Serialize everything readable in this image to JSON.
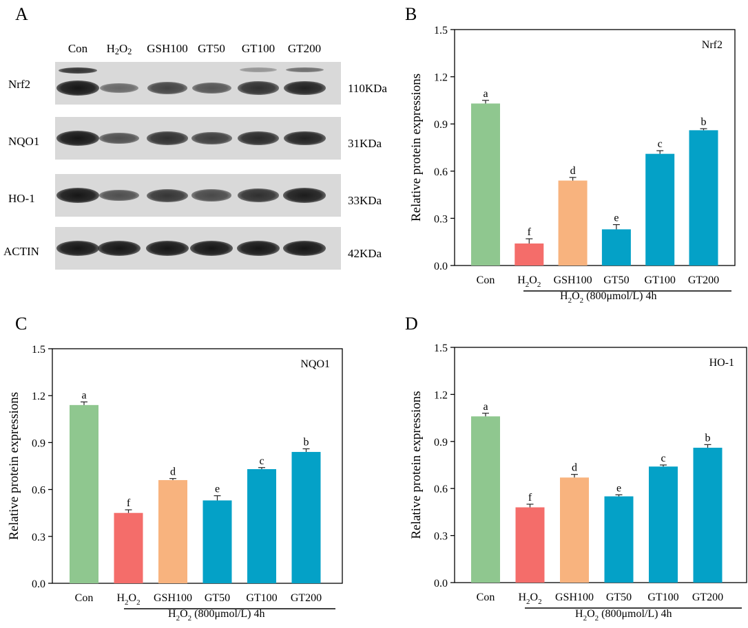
{
  "panel_letters": [
    "A",
    "B",
    "C",
    "D"
  ],
  "western_blot": {
    "lanes": [
      {
        "main": "Con",
        "sub": "",
        "tail": ""
      },
      {
        "main": "H",
        "sub": "2",
        "tail": "O",
        "sub2": "2"
      },
      {
        "main": "GSH100",
        "sub": "",
        "tail": ""
      },
      {
        "main": "GT50",
        "sub": "",
        "tail": ""
      },
      {
        "main": "GT100",
        "sub": "",
        "tail": ""
      },
      {
        "main": "GT200",
        "sub": "",
        "tail": ""
      }
    ],
    "rows": [
      {
        "name": "Nrf2",
        "kda": "110KDa",
        "band_intensity": [
          1.0,
          0.35,
          0.65,
          0.5,
          0.8,
          0.9
        ]
      },
      {
        "name": "NQO1",
        "kda": "31KDa",
        "band_intensity": [
          1.0,
          0.55,
          0.8,
          0.7,
          0.85,
          0.9
        ]
      },
      {
        "name": "HO-1",
        "kda": "33KDa",
        "band_intensity": [
          1.0,
          0.55,
          0.75,
          0.6,
          0.8,
          0.95
        ]
      },
      {
        "name": "ACTIN",
        "kda": "42KDa",
        "band_intensity": [
          1.0,
          1.0,
          1.0,
          1.0,
          1.0,
          1.0
        ]
      }
    ]
  },
  "treatment_label": {
    "pre": "H",
    "s1": "2",
    "mid": "O",
    "s2": "2",
    "post": " (800μmol/L) 4h"
  },
  "chart_data": [
    {
      "panel": "B",
      "type": "bar",
      "annotation": "Nrf2",
      "categories": [
        "Con",
        "H2O2",
        "GSH100",
        "GT50",
        "GT100",
        "GT200"
      ],
      "values": [
        1.03,
        0.14,
        0.54,
        0.23,
        0.71,
        0.86
      ],
      "errors": [
        0.02,
        0.03,
        0.02,
        0.03,
        0.02,
        0.01
      ],
      "letters": [
        "a",
        "f",
        "d",
        "e",
        "c",
        "b"
      ],
      "ylabel": "Relative protein expressions",
      "ylim": [
        0,
        1.5
      ],
      "yticks": [
        "0.0",
        "0.3",
        "0.6",
        "0.9",
        "1.2",
        "1.5"
      ]
    },
    {
      "panel": "C",
      "type": "bar",
      "annotation": "NQO1",
      "categories": [
        "Con",
        "H2O2",
        "GSH100",
        "GT50",
        "GT100",
        "GT200"
      ],
      "values": [
        1.14,
        0.45,
        0.66,
        0.53,
        0.73,
        0.84
      ],
      "errors": [
        0.02,
        0.02,
        0.01,
        0.03,
        0.01,
        0.02
      ],
      "letters": [
        "a",
        "f",
        "d",
        "e",
        "c",
        "b"
      ],
      "ylabel": "Relative protein expressions",
      "ylim": [
        0,
        1.5
      ],
      "yticks": [
        "0.0",
        "0.3",
        "0.6",
        "0.9",
        "1.2",
        "1.5"
      ]
    },
    {
      "panel": "D",
      "type": "bar",
      "annotation": "HO-1",
      "categories": [
        "Con",
        "H2O2",
        "GSH100",
        "GT50",
        "GT100",
        "GT200"
      ],
      "values": [
        1.06,
        0.48,
        0.67,
        0.55,
        0.74,
        0.86
      ],
      "errors": [
        0.02,
        0.02,
        0.02,
        0.01,
        0.01,
        0.02
      ],
      "letters": [
        "a",
        "f",
        "d",
        "e",
        "c",
        "b"
      ],
      "ylabel": "Relative protein expressions",
      "ylim": [
        0,
        1.5
      ],
      "yticks": [
        "0.0",
        "0.3",
        "0.6",
        "0.9",
        "1.2",
        "1.5"
      ]
    }
  ],
  "colors": {
    "control": "#8fc78f",
    "model": "#f46d6a",
    "positive": "#f8b37e",
    "treatment": "#04a1c7",
    "blot_background": "#d9d9d9",
    "band": "#1a1a1a"
  }
}
